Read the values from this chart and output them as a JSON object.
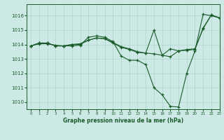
{
  "title": "Graphe pression niveau de la mer (hPa)",
  "background_color": "#cce9e5",
  "line_color": "#1a5c2a",
  "grid_color": "#b0d4ce",
  "xlim": [
    -0.5,
    23
  ],
  "ylim": [
    1009.5,
    1016.8
  ],
  "yticks": [
    1010,
    1011,
    1012,
    1013,
    1014,
    1015,
    1016
  ],
  "xticks": [
    0,
    1,
    2,
    3,
    4,
    5,
    6,
    7,
    8,
    9,
    10,
    11,
    12,
    13,
    14,
    15,
    16,
    17,
    18,
    19,
    20,
    21,
    22,
    23
  ],
  "series": [
    {
      "x": [
        0,
        1,
        2,
        3,
        4,
        5,
        6,
        7,
        8,
        9,
        10,
        11,
        12,
        13,
        14,
        15,
        16,
        17,
        18,
        19,
        20,
        21,
        22,
        23
      ],
      "y": [
        1013.9,
        1014.1,
        1014.1,
        1013.9,
        1013.9,
        1013.9,
        1013.95,
        1014.5,
        1014.6,
        1014.5,
        1014.2,
        1013.2,
        1012.9,
        1012.9,
        1012.6,
        1011.0,
        1010.5,
        1009.7,
        1009.65,
        1012.0,
        1013.55,
        1016.1,
        1016.0,
        1015.85
      ]
    },
    {
      "x": [
        0,
        1,
        2,
        3,
        4,
        5,
        6,
        7,
        8,
        9,
        10,
        11,
        12,
        13,
        14,
        15,
        16,
        17,
        18,
        19,
        20,
        21,
        22,
        23
      ],
      "y": [
        1013.9,
        1014.1,
        1014.1,
        1013.9,
        1013.9,
        1014.0,
        1014.0,
        1014.3,
        1014.45,
        1014.4,
        1014.15,
        1013.85,
        1013.7,
        1013.5,
        1013.4,
        1013.35,
        1013.25,
        1013.15,
        1013.55,
        1013.65,
        1013.7,
        1015.1,
        1016.05,
        1015.85
      ]
    },
    {
      "x": [
        0,
        1,
        2,
        3,
        4,
        5,
        6,
        7,
        8,
        9,
        10,
        11,
        12,
        13,
        14,
        15,
        16,
        17,
        18,
        19,
        20,
        21,
        22,
        23
      ],
      "y": [
        1013.9,
        1014.05,
        1014.05,
        1013.95,
        1013.9,
        1014.0,
        1014.05,
        1014.3,
        1014.45,
        1014.4,
        1014.1,
        1013.8,
        1013.65,
        1013.45,
        1013.4,
        1015.0,
        1013.25,
        1013.7,
        1013.55,
        1013.6,
        1013.65,
        1015.15,
        1016.05,
        1015.85
      ]
    }
  ]
}
